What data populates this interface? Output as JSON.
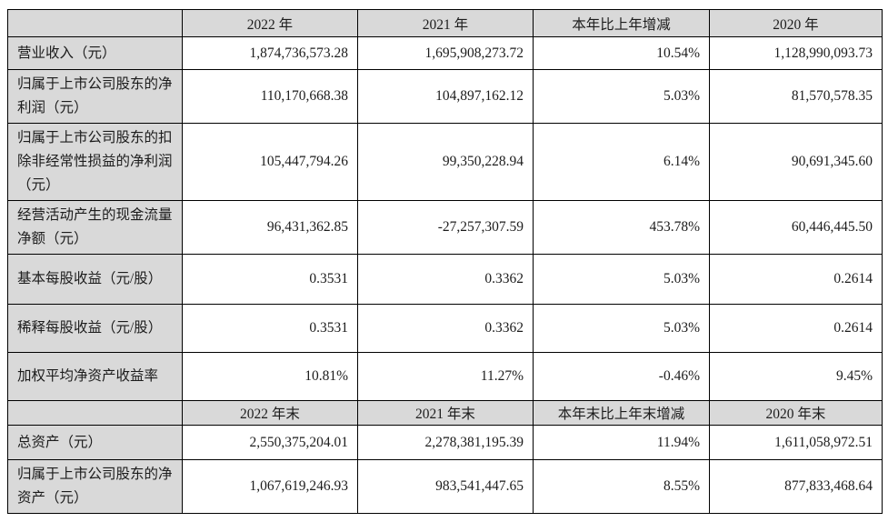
{
  "colors": {
    "header_bg": "#d9d9d9",
    "label_bg": "#d9d9d9",
    "border": "#000000",
    "text": "#1c1c1c",
    "cell_bg": "#ffffff"
  },
  "table": {
    "period_header": {
      "corner": "",
      "columns": [
        "2022 年",
        "2021 年",
        "本年比上年增减",
        "2020 年"
      ]
    },
    "period_rows": [
      {
        "label": "营业收入（元）",
        "values": [
          "1,874,736,573.28",
          "1,695,908,273.72",
          "10.54%",
          "1,128,990,093.73"
        ]
      },
      {
        "label": "归属于上市公司股东的净利润（元）",
        "values": [
          "110,170,668.38",
          "104,897,162.12",
          "5.03%",
          "81,570,578.35"
        ]
      },
      {
        "label": "归属于上市公司股东的扣除非经常性损益的净利润（元）",
        "values": [
          "105,447,794.26",
          "99,350,228.94",
          "6.14%",
          "90,691,345.60"
        ]
      },
      {
        "label": "经营活动产生的现金流量净额（元）",
        "values": [
          "96,431,362.85",
          "-27,257,307.59",
          "453.78%",
          "60,446,445.50"
        ]
      },
      {
        "label": "基本每股收益（元/股）",
        "values": [
          "0.3531",
          "0.3362",
          "5.03%",
          "0.2614"
        ]
      },
      {
        "label": "稀释每股收益（元/股）",
        "values": [
          "0.3531",
          "0.3362",
          "5.03%",
          "0.2614"
        ]
      },
      {
        "label": "加权平均净资产收益率",
        "values": [
          "10.81%",
          "11.27%",
          "-0.46%",
          "9.45%"
        ]
      }
    ],
    "yearend_header": {
      "corner": "",
      "columns": [
        "2022 年末",
        "2021 年末",
        "本年末比上年末增减",
        "2020 年末"
      ]
    },
    "yearend_rows": [
      {
        "label": "总资产（元）",
        "values": [
          "2,550,375,204.01",
          "2,278,381,195.39",
          "11.94%",
          "1,611,058,972.51"
        ]
      },
      {
        "label": "归属于上市公司股东的净资产（元）",
        "values": [
          "1,067,619,246.93",
          "983,541,447.65",
          "8.55%",
          "877,833,468.64"
        ]
      }
    ]
  }
}
